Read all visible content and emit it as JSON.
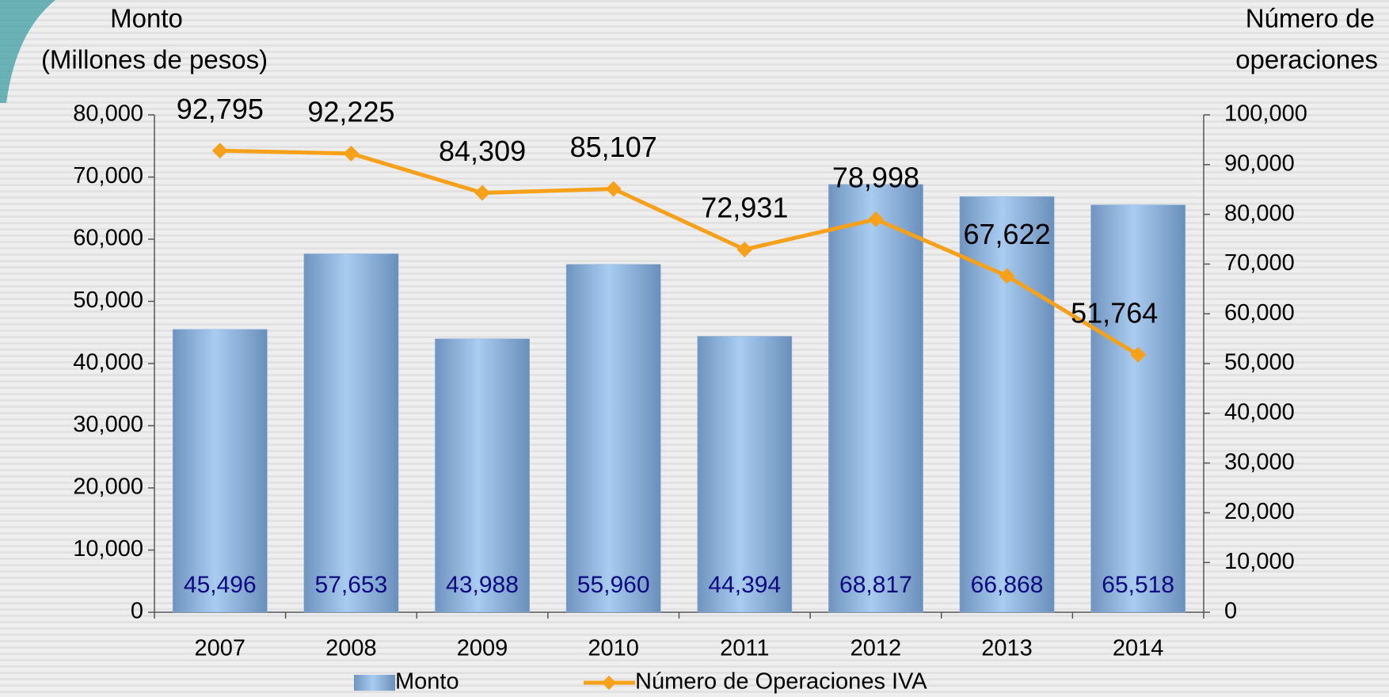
{
  "chart_data": {
    "type": "bar",
    "y_label": [
      "Monto",
      "(Millones de pesos)"
    ],
    "y2_label": [
      "Número de",
      "operaciones"
    ],
    "categories": [
      "2007",
      "2008",
      "2009",
      "2010",
      "2011",
      "2012",
      "2013",
      "2014"
    ],
    "series": [
      {
        "name": "Monto",
        "type": "bar",
        "color": "#8fb4dc",
        "values": [
          45496,
          57653,
          43988,
          55960,
          44394,
          68817,
          66868,
          65518
        ],
        "value_labels": [
          "45,496",
          "57,653",
          "43,988",
          "55,960",
          "44,394",
          "68,817",
          "66,868",
          "65,518"
        ]
      },
      {
        "name": "Número de Operaciones IVA",
        "type": "line",
        "axis": "y2",
        "color": "#f7a11a",
        "values": [
          92795,
          92225,
          84309,
          85107,
          72931,
          78998,
          67622,
          51764
        ],
        "value_labels": [
          "92,795",
          "92,225",
          "84,309",
          "85,107",
          "72,931",
          "78,998",
          "67,622",
          "51,764"
        ]
      }
    ],
    "ylim": [
      0,
      80000
    ],
    "yticks": [
      0,
      {
        "value": 10000,
        "label": "10,000"
      },
      {
        "value": 20000,
        "label": "20,000"
      },
      {
        "value": 30000,
        "label": "30,000"
      },
      {
        "value": 40000,
        "label": "40,000"
      },
      {
        "value": 50000,
        "label": "50,000"
      },
      {
        "value": 60000,
        "label": "60,000"
      },
      {
        "value": 70000,
        "label": "70,000"
      },
      {
        "value": 80000,
        "label": "80,000"
      }
    ],
    "y2lim": [
      0,
      100000
    ],
    "y2ticks": [
      0,
      {
        "value": 10000,
        "label": "10,000"
      },
      {
        "value": 20000,
        "label": "20,000"
      },
      {
        "value": 30000,
        "label": "30,000"
      },
      {
        "value": 40000,
        "label": "40,000"
      },
      {
        "value": 50000,
        "label": "50,000"
      },
      {
        "value": 60000,
        "label": "60,000"
      },
      {
        "value": 70000,
        "label": "70,000"
      },
      {
        "value": 80000,
        "label": "80,000"
      },
      {
        "value": 90000,
        "label": "90,000"
      },
      {
        "value": 100000,
        "label": "100,000"
      }
    ],
    "grid": false
  }
}
